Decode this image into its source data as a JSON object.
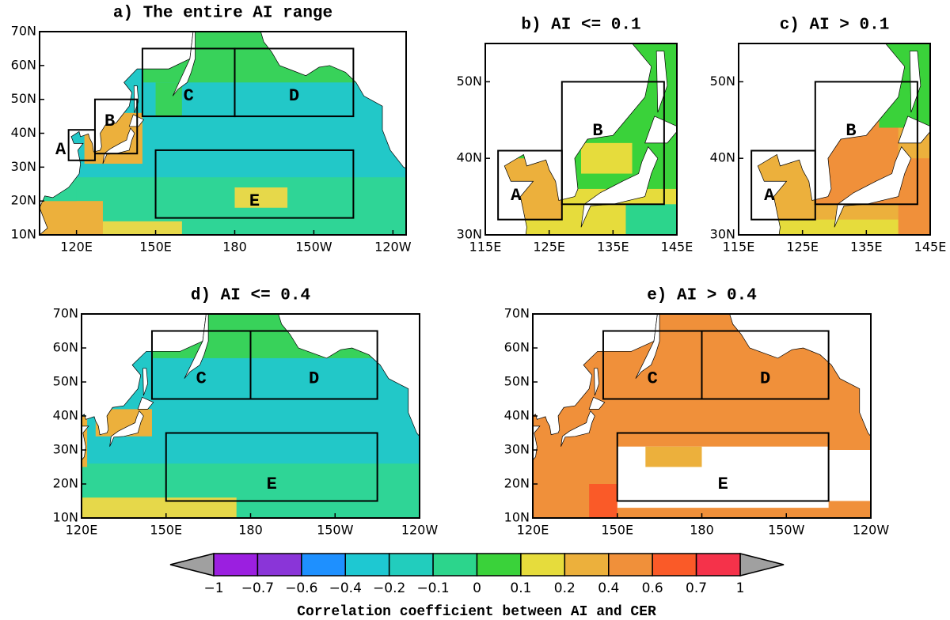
{
  "panels": [
    {
      "title": "a) The entire AI range",
      "xlim": [
        106,
        245
      ],
      "ylim": [
        10,
        70
      ],
      "xticks": [
        {
          "value": 120,
          "label": "120E"
        },
        {
          "value": 150,
          "label": "150E"
        },
        180,
        {
          "value": 210,
          "label": "150W"
        },
        {
          "value": 240,
          "label": "120W"
        }
      ],
      "yticks": [
        {
          "value": 10,
          "label": "10N"
        },
        {
          "value": 20,
          "label": "20N"
        },
        {
          "value": 30,
          "label": "30N"
        },
        {
          "value": 40,
          "label": "40N"
        },
        {
          "value": 50,
          "label": "50N"
        },
        {
          "value": 60,
          "label": "60N"
        },
        {
          "value": 70,
          "label": "70N"
        }
      ],
      "regions": [
        "A",
        "B",
        "C",
        "D",
        "E"
      ]
    },
    {
      "title": "b) AI <= 0.1",
      "xlim": [
        115,
        145
      ],
      "ylim": [
        30,
        55
      ],
      "xticks": [
        {
          "value": 115,
          "label": "115E"
        },
        {
          "value": 125,
          "label": "125E"
        },
        {
          "value": 135,
          "label": "135E"
        },
        {
          "value": 145,
          "label": "145E"
        }
      ],
      "yticks": [
        {
          "value": 30,
          "label": "30N"
        },
        {
          "value": 40,
          "label": "40N"
        },
        {
          "value": 50,
          "label": "50N"
        }
      ],
      "regions": [
        "A",
        "B"
      ]
    },
    {
      "title": "c) AI > 0.1",
      "xlim": [
        115,
        145
      ],
      "ylim": [
        30,
        55
      ],
      "xticks": [
        {
          "value": 115,
          "label": "115E"
        },
        {
          "value": 125,
          "label": "125E"
        },
        {
          "value": 135,
          "label": "135E"
        },
        {
          "value": 145,
          "label": "145E"
        }
      ],
      "yticks": [
        {
          "value": 30,
          "label": "30N"
        },
        {
          "value": 40,
          "label": "40N"
        },
        {
          "value": 50,
          "label": "50N"
        }
      ],
      "regions": [
        "A",
        "B"
      ]
    },
    {
      "title": "d) AI <= 0.4",
      "xlim": [
        120,
        240
      ],
      "ylim": [
        10,
        70
      ],
      "xticks": [
        {
          "value": 120,
          "label": "120E"
        },
        {
          "value": 150,
          "label": "150E"
        },
        180,
        {
          "value": 210,
          "label": "150W"
        },
        {
          "value": 240,
          "label": "120W"
        }
      ],
      "yticks": [
        {
          "value": 10,
          "label": "10N"
        },
        {
          "value": 20,
          "label": "20N"
        },
        {
          "value": 30,
          "label": "30N"
        },
        {
          "value": 40,
          "label": "40N"
        },
        {
          "value": 50,
          "label": "50N"
        },
        {
          "value": 60,
          "label": "60N"
        },
        {
          "value": 70,
          "label": "70N"
        }
      ],
      "regions": [
        "C",
        "D",
        "E"
      ]
    },
    {
      "title": "e) AI > 0.4",
      "xlim": [
        120,
        240
      ],
      "ylim": [
        10,
        70
      ],
      "xticks": [
        {
          "value": 120,
          "label": "120E"
        },
        {
          "value": 150,
          "label": "150E"
        },
        180,
        {
          "value": 210,
          "label": "150W"
        },
        {
          "value": 240,
          "label": "120W"
        }
      ],
      "yticks": [
        {
          "value": 10,
          "label": "10N"
        },
        {
          "value": 20,
          "label": "20N"
        },
        {
          "value": 30,
          "label": "30N"
        },
        {
          "value": 40,
          "label": "40N"
        },
        {
          "value": 50,
          "label": "50N"
        },
        {
          "value": 60,
          "label": "60N"
        },
        {
          "value": 70,
          "label": "70N"
        }
      ],
      "regions": [
        "C",
        "D",
        "E"
      ]
    }
  ],
  "colorbar": {
    "title": "Correlation coefficient between AI and CER",
    "ticks": [
      {
        "value": -1,
        "label": "−1"
      },
      {
        "value": -0.7,
        "label": "−0.7"
      },
      {
        "value": -0.6,
        "label": "−0.6"
      },
      {
        "value": -0.4,
        "label": "−0.4"
      },
      {
        "value": -0.2,
        "label": "−0.2"
      },
      {
        "value": -0.1,
        "label": "−0.1"
      },
      0,
      0.1,
      0.2,
      0.4,
      0.6,
      0.7,
      1
    ],
    "colors": [
      "#9b1fe0",
      "#8a35d8",
      "#1e90ff",
      "#1ec8d2",
      "#22cdbd",
      "#2cd58c",
      "#3ad23a",
      "#e6dc3c",
      "#ecb03c",
      "#f0903a",
      "#fa5a28",
      "#f5324a",
      "#f01e96"
    ],
    "end_color": "#a0a0a0"
  }
}
